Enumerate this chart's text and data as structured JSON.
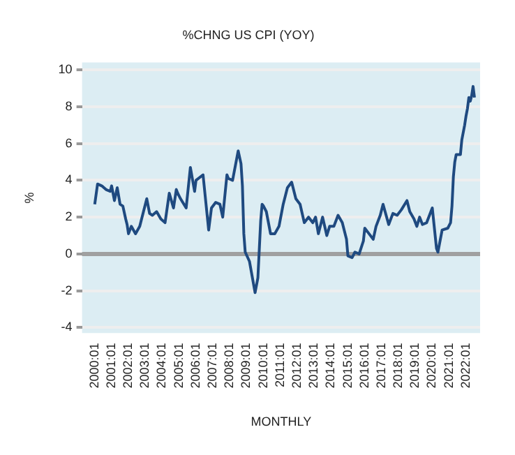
{
  "chart_data": {
    "type": "line",
    "title": "%CHNG US CPI (YOY)",
    "xlabel": "MONTHLY",
    "ylabel": "%",
    "x": [
      "2000-01",
      "2000-03",
      "2000-06",
      "2000-09",
      "2000-12",
      "2001-01",
      "2001-03",
      "2001-05",
      "2001-07",
      "2001-09",
      "2001-11",
      "2001-12",
      "2002-01",
      "2002-03",
      "2002-06",
      "2002-09",
      "2002-12",
      "2003-02",
      "2003-04",
      "2003-06",
      "2003-09",
      "2003-12",
      "2004-03",
      "2004-06",
      "2004-09",
      "2004-11",
      "2004-12",
      "2005-02",
      "2005-06",
      "2005-09",
      "2005-12",
      "2006-01",
      "2006-06",
      "2006-10",
      "2006-12",
      "2007-03",
      "2007-06",
      "2007-08",
      "2007-11",
      "2007-12",
      "2008-03",
      "2008-07",
      "2008-09",
      "2008-10",
      "2008-11",
      "2008-12",
      "2009-03",
      "2009-07",
      "2009-09",
      "2009-11",
      "2009-12",
      "2010-01",
      "2010-03",
      "2010-06",
      "2010-09",
      "2010-12",
      "2011-03",
      "2011-06",
      "2011-09",
      "2011-12",
      "2012-03",
      "2012-06",
      "2012-09",
      "2012-12",
      "2013-02",
      "2013-04",
      "2013-07",
      "2013-10",
      "2013-12",
      "2014-03",
      "2014-06",
      "2014-09",
      "2014-12",
      "2015-01",
      "2015-04",
      "2015-06",
      "2015-09",
      "2015-12",
      "2016-01",
      "2016-04",
      "2016-07",
      "2016-09",
      "2016-12",
      "2017-02",
      "2017-06",
      "2017-09",
      "2017-12",
      "2018-03",
      "2018-07",
      "2018-09",
      "2018-12",
      "2019-02",
      "2019-04",
      "2019-06",
      "2019-09",
      "2019-12",
      "2020-01",
      "2020-04",
      "2020-05",
      "2020-08",
      "2020-12",
      "2021-02",
      "2021-03",
      "2021-04",
      "2021-05",
      "2021-06",
      "2021-09",
      "2021-10",
      "2021-12",
      "2022-01",
      "2022-02",
      "2022-03",
      "2022-04",
      "2022-05",
      "2022-06",
      "2022-07"
    ],
    "series": [
      {
        "color": "#1f4a80",
        "values": [
          2.7,
          3.8,
          3.7,
          3.5,
          3.4,
          3.7,
          2.9,
          3.6,
          2.7,
          2.6,
          1.9,
          1.6,
          1.1,
          1.5,
          1.1,
          1.5,
          2.4,
          3.0,
          2.2,
          2.1,
          2.3,
          1.9,
          1.7,
          3.3,
          2.5,
          3.5,
          3.3,
          3.0,
          2.5,
          4.7,
          3.4,
          4.0,
          4.3,
          1.3,
          2.5,
          2.8,
          2.7,
          2.0,
          4.3,
          4.1,
          4.0,
          5.6,
          4.9,
          3.7,
          1.1,
          0.1,
          -0.4,
          -2.1,
          -1.3,
          1.8,
          2.7,
          2.6,
          2.3,
          1.1,
          1.1,
          1.5,
          2.7,
          3.6,
          3.9,
          3.0,
          2.7,
          1.7,
          2.0,
          1.7,
          2.0,
          1.1,
          2.0,
          1.0,
          1.5,
          1.5,
          2.1,
          1.7,
          0.8,
          -0.1,
          -0.2,
          0.1,
          0.0,
          0.7,
          1.4,
          1.1,
          0.8,
          1.5,
          2.1,
          2.7,
          1.6,
          2.2,
          2.1,
          2.4,
          2.9,
          2.3,
          1.9,
          1.5,
          2.0,
          1.6,
          1.7,
          2.3,
          2.5,
          0.3,
          0.1,
          1.3,
          1.4,
          1.7,
          2.6,
          4.2,
          5.0,
          5.4,
          5.4,
          6.2,
          7.0,
          7.5,
          7.9,
          8.5,
          8.3,
          8.6,
          9.1,
          8.5
        ]
      }
    ],
    "xlim": [
      "1999-04",
      "2022-11"
    ],
    "xticks": [
      {
        "value": "2000-01",
        "label": "2000:01"
      },
      {
        "value": "2001-01",
        "label": "2001:01"
      },
      {
        "value": "2002-01",
        "label": "2002:01"
      },
      {
        "value": "2003-01",
        "label": "2003:01"
      },
      {
        "value": "2004-01",
        "label": "2004:01"
      },
      {
        "value": "2005-01",
        "label": "2005:01"
      },
      {
        "value": "2006-01",
        "label": "2006:01"
      },
      {
        "value": "2007-01",
        "label": "2007:01"
      },
      {
        "value": "2008-01",
        "label": "2008:01"
      },
      {
        "value": "2009-01",
        "label": "2009:01"
      },
      {
        "value": "2010-01",
        "label": "2010:01"
      },
      {
        "value": "2011-01",
        "label": "2011:01"
      },
      {
        "value": "2012-01",
        "label": "2012:01"
      },
      {
        "value": "2013-01",
        "label": "2013:01"
      },
      {
        "value": "2014-01",
        "label": "2014:01"
      },
      {
        "value": "2015-01",
        "label": "2015:01"
      },
      {
        "value": "2016-01",
        "label": "2016:01"
      },
      {
        "value": "2017-01",
        "label": "2017:01"
      },
      {
        "value": "2018-01",
        "label": "2018:01"
      },
      {
        "value": "2019-01",
        "label": "2019:01"
      },
      {
        "value": "2020-01",
        "label": "2020:01"
      },
      {
        "value": "2021-01",
        "label": "2021:01"
      },
      {
        "value": "2022-01",
        "label": "2022:01"
      }
    ],
    "ylim": [
      -4.3,
      10.4
    ],
    "yticks": [
      -4,
      -2,
      0,
      2,
      4,
      6,
      8,
      10
    ],
    "grid": "y",
    "legend": false,
    "marker": "none",
    "line_style": "solid",
    "ref_lines": [
      {
        "axis": "y",
        "value": 0,
        "color": "#a0a0a0"
      }
    ]
  }
}
